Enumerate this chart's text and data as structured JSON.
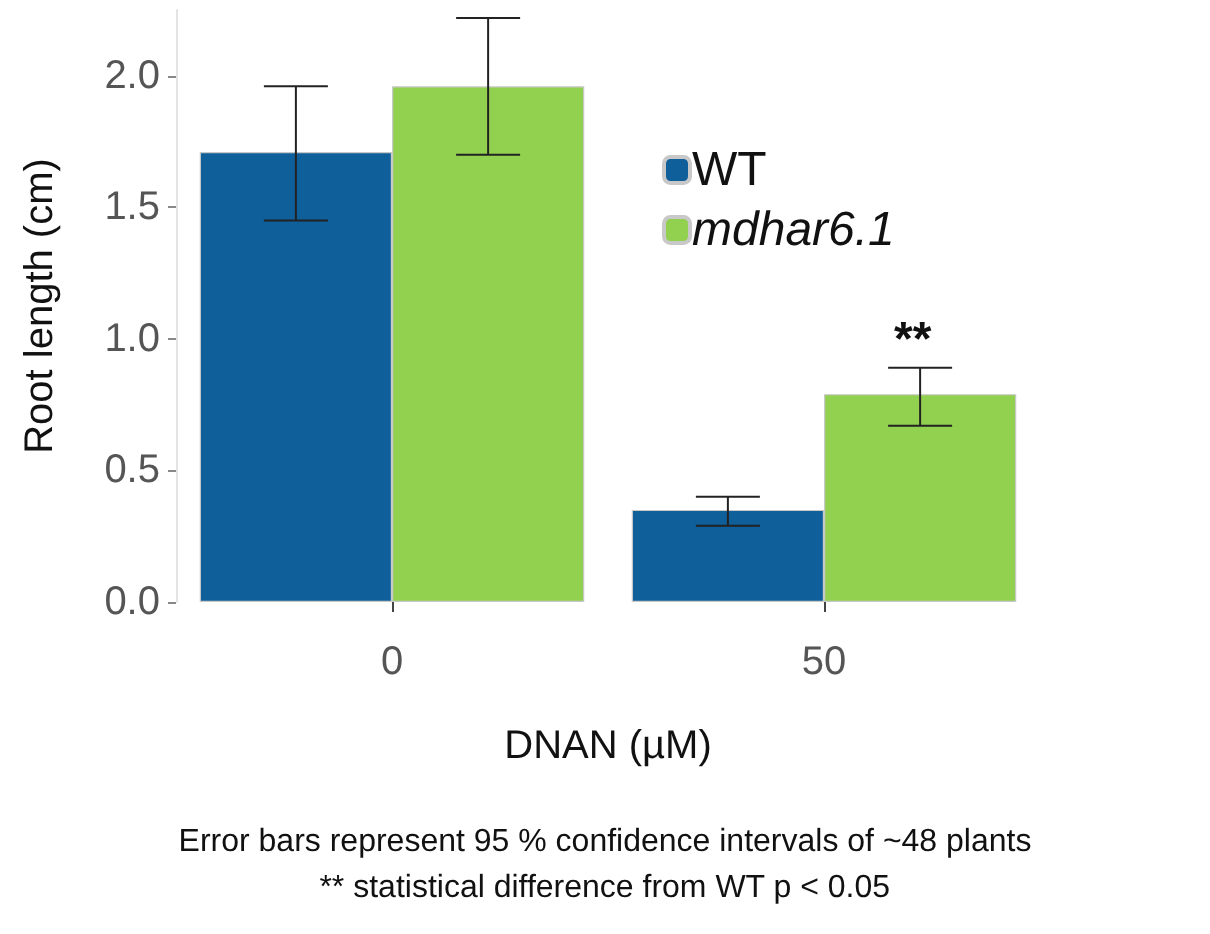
{
  "chart_data": {
    "type": "bar",
    "xlabel": "DNAN (µM)",
    "ylabel": "Root length (cm)",
    "categories": [
      "0",
      "50"
    ],
    "series": [
      {
        "name": "WT",
        "color": "#0f5f9a",
        "values": [
          1.71,
          0.35
        ],
        "errors": [
          [
            1.45,
            1.96
          ],
          [
            0.29,
            0.4
          ]
        ]
      },
      {
        "name": "mdhar6.1",
        "color": "#92d050",
        "values": [
          1.96,
          0.79
        ],
        "errors": [
          [
            1.7,
            2.22
          ],
          [
            0.67,
            0.89
          ]
        ]
      }
    ],
    "yticks": [
      {
        "value": 0,
        "label": "0.0"
      },
      {
        "value": 0.5,
        "label": "0.5"
      },
      {
        "value": 1,
        "label": "1.0"
      },
      {
        "value": 1.5,
        "label": "1.5"
      },
      {
        "value": 2,
        "label": "2.0"
      }
    ],
    "ylim": [
      0,
      2.25
    ],
    "grid": false,
    "legend": "top right",
    "annotations": [
      "**",
      "Error bars represent 95 % confidence intervals of ~48 plants",
      "** statistical difference from WT p < 0.05"
    ]
  }
}
